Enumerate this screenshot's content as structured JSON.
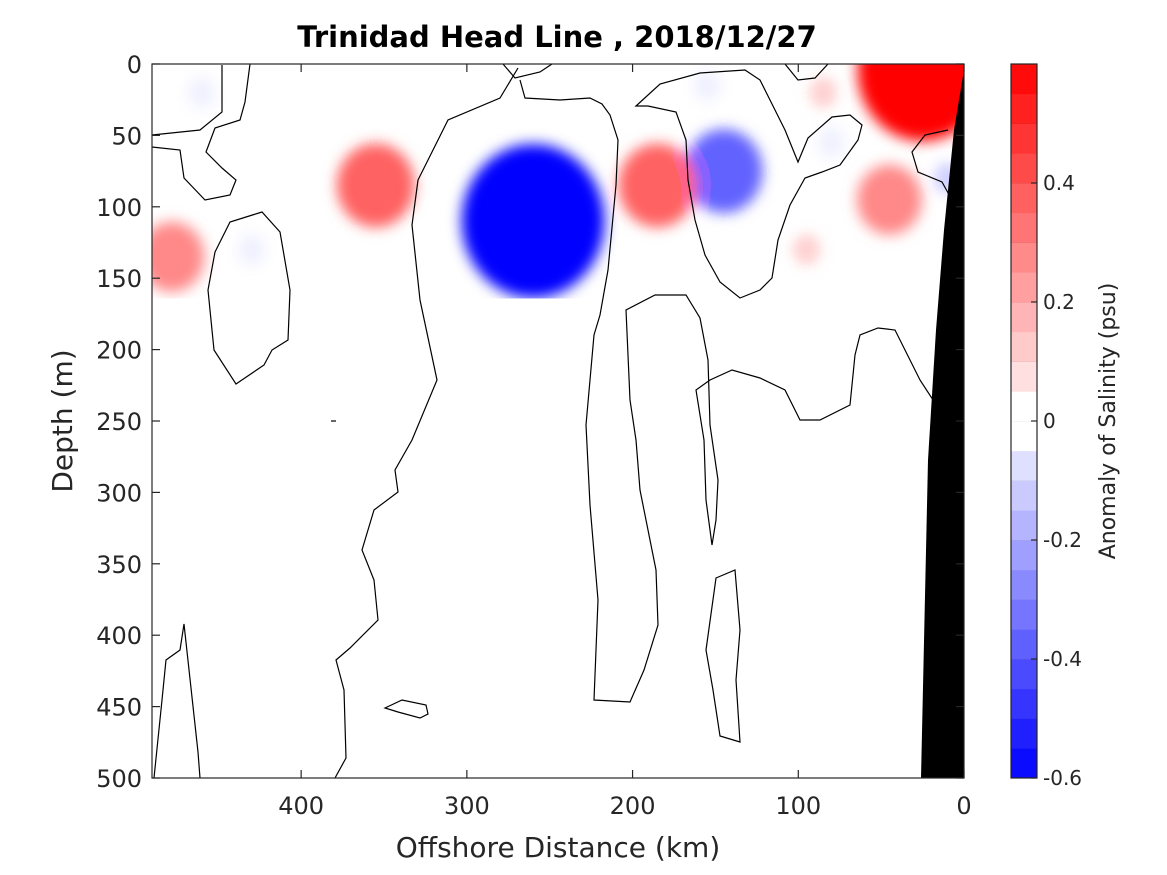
{
  "chart_data": {
    "type": "contour",
    "title": "Trinidad Head Line , 2018/12/27",
    "xlabel": "Offshore Distance (km)",
    "ylabel": "Depth (m)",
    "x_reversed": true,
    "xlim": [
      490,
      0
    ],
    "ylim": [
      500,
      0
    ],
    "x_ticks": [
      "400",
      "300",
      "200",
      "100",
      "0"
    ],
    "x_tick_values": [
      400,
      300,
      200,
      100,
      0
    ],
    "y_ticks": [
      "0",
      "50",
      "100",
      "150",
      "200",
      "250",
      "300",
      "350",
      "400",
      "450",
      "500"
    ],
    "y_tick_values": [
      0,
      50,
      100,
      150,
      200,
      250,
      300,
      350,
      400,
      450,
      500
    ],
    "colorbar": {
      "label": "Anomaly of Salinity (psu)",
      "range": [
        -0.6,
        0.6
      ],
      "step": 0.05,
      "ticks": [
        "0.4",
        "0.2",
        "0",
        "-0.2",
        "-0.4",
        "-0.6"
      ],
      "tick_values": [
        0.4,
        0.2,
        0,
        -0.2,
        -0.4,
        -0.6
      ],
      "negative_color": "#0000ff",
      "positive_color": "#ff0000",
      "zero_color": "#ffffff"
    },
    "features": [
      {
        "kind": "anomaly",
        "x": 260,
        "depth": 110,
        "value": -0.55
      },
      {
        "kind": "anomaly",
        "x": 145,
        "depth": 75,
        "value": -0.3
      },
      {
        "kind": "anomaly",
        "x": 10,
        "depth": 80,
        "value": -0.1
      },
      {
        "kind": "anomaly",
        "x": 155,
        "depth": 15,
        "value": -0.05
      },
      {
        "kind": "anomaly",
        "x": 80,
        "depth": 55,
        "value": -0.05
      },
      {
        "kind": "anomaly",
        "x": 460,
        "depth": 20,
        "value": -0.05
      },
      {
        "kind": "anomaly",
        "x": 430,
        "depth": 130,
        "value": -0.05
      },
      {
        "kind": "anomaly",
        "x": 355,
        "depth": 85,
        "value": 0.3
      },
      {
        "kind": "anomaly",
        "x": 185,
        "depth": 85,
        "value": 0.3
      },
      {
        "kind": "anomaly",
        "x": 478,
        "depth": 135,
        "value": 0.25
      },
      {
        "kind": "anomaly",
        "x": 25,
        "depth": 5,
        "value": 0.5
      },
      {
        "kind": "anomaly",
        "x": 45,
        "depth": 95,
        "value": 0.25
      },
      {
        "kind": "anomaly",
        "x": 85,
        "depth": 20,
        "value": 0.1
      },
      {
        "kind": "anomaly",
        "x": 95,
        "depth": 130,
        "value": 0.1
      }
    ],
    "bathymetry_fill": "#000000"
  }
}
